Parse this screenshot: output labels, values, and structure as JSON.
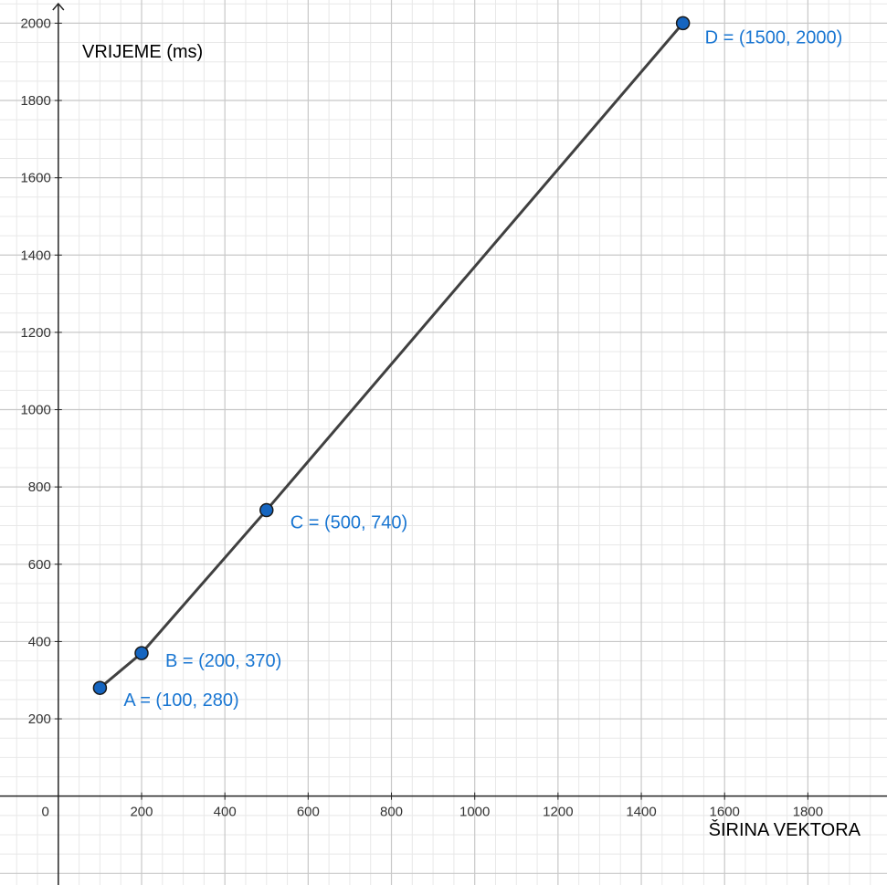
{
  "chart_data": {
    "type": "line",
    "xlabel": "ŠIRINA VEKTORA",
    "ylabel": "VRIJEME (ms)",
    "xlim": [
      -140,
      1990
    ],
    "ylim": [
      -230,
      2060
    ],
    "x_ticks": [
      200,
      400,
      600,
      800,
      1000,
      1200,
      1400,
      1600,
      1800
    ],
    "y_ticks": [
      200,
      400,
      600,
      800,
      1000,
      1200,
      1400,
      1600,
      1800,
      2000
    ],
    "origin_label": "0",
    "grid": true,
    "series": [
      {
        "points": [
          {
            "name": "A",
            "x": 100,
            "y": 280,
            "label": "A = (100, 280)"
          },
          {
            "name": "B",
            "x": 200,
            "y": 370,
            "label": "B = (200, 370)"
          },
          {
            "name": "C",
            "x": 500,
            "y": 740,
            "label": "C = (500, 740)"
          },
          {
            "name": "D",
            "x": 1500,
            "y": 2000,
            "label": "D = (1500, 2000)"
          }
        ]
      }
    ],
    "colors": {
      "line": "#404040",
      "point_fill": "#1565c0",
      "point_stroke": "#1a1a1a",
      "point_label": "#1976d2",
      "major_grid": "#c8c8c8",
      "minor_grid": "#e8e8e8",
      "axis": "#252525"
    }
  }
}
